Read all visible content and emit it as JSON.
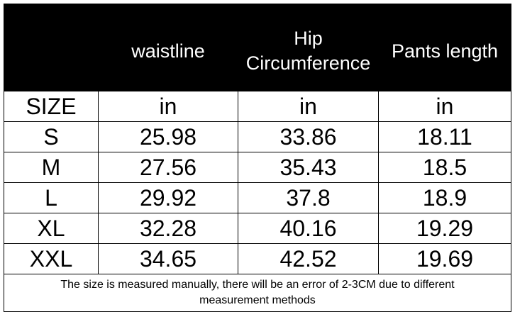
{
  "table": {
    "header": [
      "waistline",
      "Hip Circumference",
      "Pants length"
    ],
    "unit_row": [
      "SIZE",
      "in",
      "in",
      "in"
    ],
    "rows": [
      [
        "S",
        "25.98",
        "33.86",
        "18.11"
      ],
      [
        "M",
        "27.56",
        "35.43",
        "18.5"
      ],
      [
        "L",
        "29.92",
        "37.8",
        "18.9"
      ],
      [
        "XL",
        "32.28",
        "40.16",
        "19.29"
      ],
      [
        "XXL",
        "34.65",
        "42.52",
        "19.69"
      ]
    ],
    "note": "The size is measured manually, there will be an error of 2-3CM due to different measurement methods"
  }
}
